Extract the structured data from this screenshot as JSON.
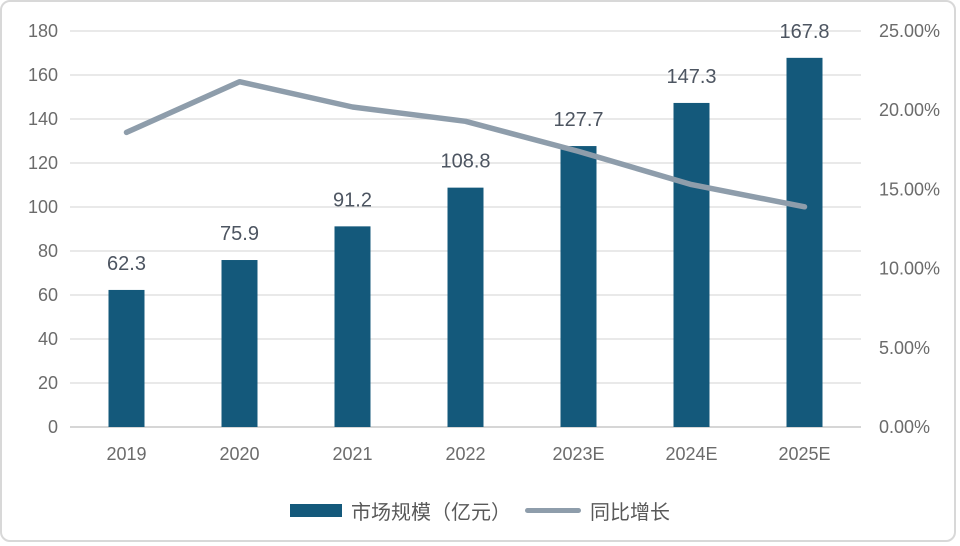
{
  "chart_data": {
    "type": "bar",
    "subtype": "bar+line combo, dual axis",
    "title": "",
    "categories": [
      "2019",
      "2020",
      "2021",
      "2022",
      "2023E",
      "2024E",
      "2025E"
    ],
    "series": [
      {
        "name": "市场规模（亿元）",
        "type": "bar",
        "axis": "left",
        "color": "#14597B",
        "values": [
          62.3,
          75.9,
          91.2,
          108.8,
          127.7,
          147.3,
          167.8
        ],
        "data_labels": [
          "62.3",
          "75.9",
          "91.2",
          "108.8",
          "127.7",
          "147.3",
          "167.8"
        ]
      },
      {
        "name": "同比增长",
        "type": "line",
        "axis": "right",
        "color": "#8E9DAB",
        "values": [
          18.6,
          21.8,
          20.2,
          19.3,
          17.4,
          15.3,
          13.9
        ]
      }
    ],
    "left_axis": {
      "range": [
        0,
        180
      ],
      "step": 20,
      "tick_labels": [
        "0",
        "20",
        "40",
        "60",
        "80",
        "100",
        "120",
        "140",
        "160",
        "180"
      ]
    },
    "right_axis": {
      "range": [
        0,
        25
      ],
      "step": 5,
      "tick_labels": [
        "0.00%",
        "5.00%",
        "10.00%",
        "15.00%",
        "20.00%",
        "25.00%"
      ]
    },
    "grid": "horizontal",
    "legend_position": "bottom"
  },
  "legend": {
    "items": [
      {
        "label": "市场规模（亿元）",
        "swatch": "bar"
      },
      {
        "label": "同比增长",
        "swatch": "line"
      }
    ]
  },
  "colors": {
    "bar": "#14597B",
    "line": "#8E9DAB",
    "grid_line": "#E2E2E2",
    "axis_line": "#C8C8C8",
    "axis_text": "#6B6B6B",
    "data_label_text": "#4D5561",
    "legend_text": "#595959",
    "frame_border": "#D8D8D8",
    "background": "#FFFFFF"
  }
}
